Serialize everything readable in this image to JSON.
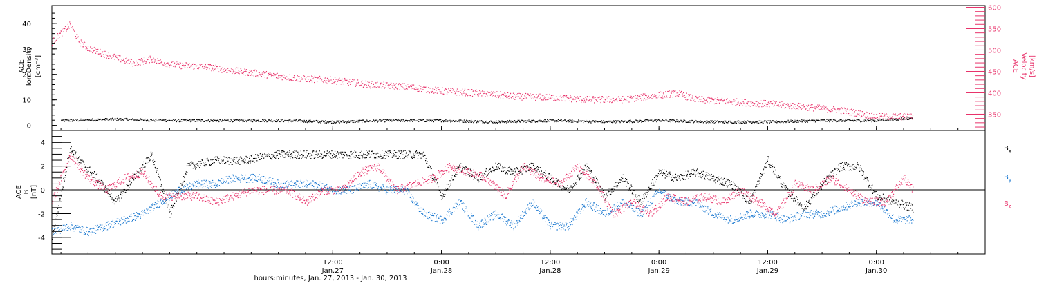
{
  "colors": {
    "black": "#000000",
    "pink": "#e8336b",
    "blue": "#1a78d0"
  },
  "time_axis": {
    "xlabel": "hours:minutes, Jan. 27, 2013 - Jan. 30, 2013",
    "range_hours": [
      -19,
      84
    ],
    "ticks": [
      {
        "hour": 12,
        "time": "12:00",
        "date": "Jan.27"
      },
      {
        "hour": 24,
        "time": "0:00",
        "date": "Jan.28"
      },
      {
        "hour": 36,
        "time": "12:00",
        "date": "Jan.28"
      },
      {
        "hour": 48,
        "time": "0:00",
        "date": "Jan.29"
      },
      {
        "hour": 60,
        "time": "12:00",
        "date": "Jan.29"
      },
      {
        "hour": 72,
        "time": "0:00",
        "date": "Jan.30"
      }
    ]
  },
  "chart_data": [
    {
      "type": "scatter",
      "panel": "top",
      "ylabel_left": [
        "ACE",
        "Ion Density",
        "[cm⁻³]"
      ],
      "ylabel_right": [
        "ACE",
        "Velocity",
        "[km/s]"
      ],
      "ylim_left": [
        -2,
        47
      ],
      "ylim_right": [
        312,
        604
      ],
      "yticks_left": [
        0,
        10,
        20,
        30,
        40
      ],
      "yticks_right": [
        350,
        400,
        450,
        500,
        550,
        600
      ],
      "series": [
        {
          "axis": "left",
          "color": "#000000",
          "x": [
            -18,
            -12,
            -6,
            0,
            6,
            12,
            18,
            24,
            30,
            36,
            42,
            48,
            54,
            60,
            66,
            72,
            76
          ],
          "y": [
            2,
            2.5,
            2,
            2,
            2,
            1.5,
            2,
            2,
            1.5,
            2,
            1.5,
            2,
            1.5,
            1.5,
            2,
            2,
            3
          ]
        },
        {
          "axis": "right",
          "color": "#e8336b",
          "x": [
            -19,
            -17,
            -16,
            -15,
            -13,
            -10,
            -8,
            -7,
            -5,
            -2,
            0,
            4,
            8,
            12,
            16,
            20,
            24,
            28,
            32,
            36,
            40,
            44,
            48,
            50,
            52,
            56,
            60,
            64,
            68,
            72,
            76
          ],
          "y": [
            520,
            560,
            520,
            505,
            490,
            470,
            480,
            472,
            465,
            462,
            455,
            445,
            435,
            430,
            420,
            415,
            405,
            400,
            392,
            390,
            385,
            385,
            395,
            400,
            385,
            380,
            375,
            368,
            360,
            345,
            345
          ]
        }
      ]
    },
    {
      "type": "scatter",
      "panel": "bottom",
      "ylabel_left": [
        "ACE",
        "B",
        "[nT]"
      ],
      "ylim": [
        -5.4,
        5
      ],
      "yticks": [
        -4,
        -2,
        0,
        2,
        4
      ],
      "legend_position": "right",
      "series": [
        {
          "name": "B",
          "subscript": "x",
          "color": "#000000",
          "x": [
            -19,
            -17,
            -16,
            -14,
            -12,
            -10,
            -8,
            -6,
            -4,
            -1,
            2,
            6,
            10,
            14,
            18,
            22,
            24,
            26,
            28,
            30,
            32,
            34,
            36,
            38,
            40,
            42,
            44,
            46,
            48,
            50,
            52,
            54,
            56,
            58,
            60,
            62,
            64,
            66,
            68,
            70,
            72,
            74,
            76
          ],
          "y": [
            -4,
            3.5,
            2.5,
            1,
            -1,
            1,
            3,
            -2,
            2,
            2.5,
            2.5,
            3,
            3,
            3,
            3,
            3,
            -0.5,
            2,
            1,
            2,
            1.5,
            2,
            1,
            0,
            2,
            -0.5,
            1,
            -1,
            1.5,
            1,
            1.5,
            1,
            0.5,
            -1,
            2.5,
            0,
            -1.5,
            0.5,
            2,
            2,
            -0.5,
            -1,
            -1.5
          ]
        },
        {
          "name": "B",
          "subscript": "y",
          "color": "#1a78d0",
          "x": [
            -19,
            -17,
            -15,
            -13,
            -11,
            -9,
            -7,
            -5,
            -3,
            -1,
            1,
            4,
            6,
            8,
            10,
            12,
            14,
            16,
            18,
            20,
            22,
            24,
            26,
            28,
            30,
            32,
            34,
            36,
            38,
            40,
            42,
            44,
            46,
            48,
            50,
            52,
            54,
            56,
            58,
            60,
            62,
            64,
            66,
            68,
            70,
            72,
            74,
            76
          ],
          "y": [
            -3.5,
            -3,
            -3.5,
            -3,
            -2.5,
            -2,
            -1,
            0,
            0.5,
            0.5,
            1,
            1,
            0.5,
            0.5,
            0.5,
            0,
            0,
            0.5,
            0,
            0,
            -2,
            -2.5,
            -1,
            -3,
            -2,
            -3,
            -1,
            -3,
            -3,
            -1,
            -2,
            -1,
            -2,
            0,
            -1,
            -1,
            -2,
            -2.5,
            -2,
            -2,
            -2.5,
            -2,
            -2,
            -1.5,
            -1,
            -1,
            -2.5,
            -2.5
          ]
        },
        {
          "name": "B",
          "subscript": "z",
          "color": "#e8336b",
          "x": [
            -19,
            -17,
            -15,
            -13,
            -11,
            -9,
            -7,
            -5,
            -3,
            -1,
            1,
            3,
            5,
            7,
            9,
            11,
            13,
            15,
            17,
            19,
            21,
            23,
            25,
            27,
            29,
            31,
            33,
            35,
            37,
            39,
            41,
            43,
            45,
            47,
            49,
            51,
            53,
            55,
            57,
            59,
            61,
            63,
            65,
            67,
            69,
            71,
            73,
            75,
            76
          ],
          "y": [
            -1,
            3,
            1,
            0,
            1,
            1.5,
            -0.5,
            -0.5,
            -0.5,
            -1,
            -0.5,
            0,
            0,
            0,
            -1,
            0,
            0,
            1.5,
            2,
            0,
            0.5,
            1,
            2,
            1.5,
            1,
            -0.5,
            2,
            1,
            0.5,
            2,
            0.5,
            -2,
            -1,
            -2,
            -0.5,
            -1,
            -0.5,
            -1,
            0,
            -1,
            -2,
            0.5,
            0,
            1,
            0,
            -1,
            -1,
            1,
            0
          ]
        }
      ]
    }
  ]
}
